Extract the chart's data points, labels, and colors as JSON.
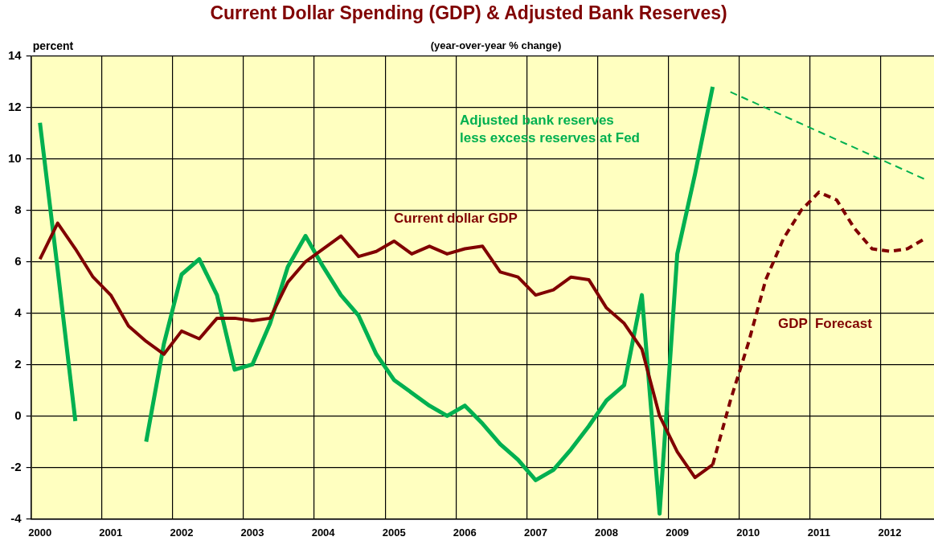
{
  "chart_data": {
    "type": "line",
    "title": "Current Dollar Spending (GDP) & Adjusted Bank Reserves)",
    "subtitle": "(year-over-year % change)",
    "ylabel": "percent",
    "categories": [
      "2000",
      null,
      null,
      null,
      "2001",
      null,
      null,
      null,
      "2002",
      null,
      null,
      null,
      "2003",
      null,
      null,
      null,
      "2004",
      null,
      null,
      null,
      "2005",
      null,
      null,
      null,
      "2006",
      null,
      null,
      null,
      "2007",
      null,
      null,
      null,
      "2008",
      null,
      null,
      null,
      "2009",
      null,
      null,
      null,
      "2010",
      null,
      null,
      null,
      "2011",
      null,
      null,
      null,
      "2012",
      null,
      null
    ],
    "series": [
      {
        "name": "Current dollar GDP",
        "color": "#800000",
        "line_style": "solid",
        "values": [
          6.1,
          7.5,
          6.5,
          5.4,
          4.7,
          3.5,
          2.9,
          2.4,
          3.3,
          3.0,
          3.8,
          3.8,
          3.7,
          3.8,
          5.2,
          6.0,
          6.5,
          7.0,
          6.2,
          6.4,
          6.8,
          6.3,
          6.6,
          6.3,
          6.5,
          6.6,
          5.6,
          5.4,
          4.7,
          4.9,
          5.4,
          5.3,
          4.2,
          3.6,
          2.6,
          0.0,
          -1.4,
          -2.4,
          -1.9,
          null,
          null,
          null,
          null,
          null,
          null,
          null,
          null,
          null,
          null,
          null,
          null
        ]
      },
      {
        "name": "GDP  Forecast",
        "color": "#800000",
        "line_style": "dashed",
        "values": [
          null,
          null,
          null,
          null,
          null,
          null,
          null,
          null,
          null,
          null,
          null,
          null,
          null,
          null,
          null,
          null,
          null,
          null,
          null,
          null,
          null,
          null,
          null,
          null,
          null,
          null,
          null,
          null,
          null,
          null,
          null,
          null,
          null,
          null,
          null,
          null,
          null,
          null,
          -1.9,
          0.6,
          2.8,
          5.3,
          6.9,
          8.0,
          8.7,
          8.4,
          7.3,
          6.5,
          6.4,
          6.5,
          6.9
        ]
      },
      {
        "name": "Adjusted bank reserves\nless excess reserves at Fed",
        "color": "#00b050",
        "line_style": "solid",
        "values": [
          11.4,
          5.7,
          -0.2,
          null,
          null,
          null,
          -1.0,
          2.8,
          5.5,
          6.1,
          4.7,
          1.8,
          2.0,
          3.6,
          5.8,
          7.0,
          5.8,
          4.7,
          3.9,
          2.4,
          1.4,
          0.9,
          0.4,
          0.0,
          0.4,
          -0.3,
          -1.1,
          -1.7,
          -2.5,
          -2.1,
          -1.3,
          -0.4,
          0.6,
          1.2,
          4.7,
          -3.8,
          6.3,
          9.4,
          12.8,
          null,
          null,
          null,
          null,
          null,
          null,
          null,
          null,
          null,
          null,
          null,
          null
        ]
      },
      {
        "color": "#00b050",
        "line_style": "dashed",
        "values": [
          null,
          null,
          null,
          null,
          null,
          null,
          null,
          null,
          null,
          null,
          null,
          null,
          null,
          null,
          null,
          null,
          null,
          null,
          null,
          null,
          null,
          null,
          null,
          null,
          null,
          null,
          null,
          null,
          null,
          null,
          null,
          null,
          null,
          null,
          null,
          null,
          null,
          null,
          null,
          12.6,
          null,
          null,
          null,
          null,
          null,
          null,
          null,
          null,
          null,
          null,
          9.2
        ]
      }
    ],
    "ylim": [
      -4,
      14
    ],
    "yticks": [
      -4,
      -2,
      0,
      2,
      4,
      6,
      8,
      10,
      12,
      14
    ],
    "grid": true,
    "legend": false,
    "marker": "none"
  }
}
